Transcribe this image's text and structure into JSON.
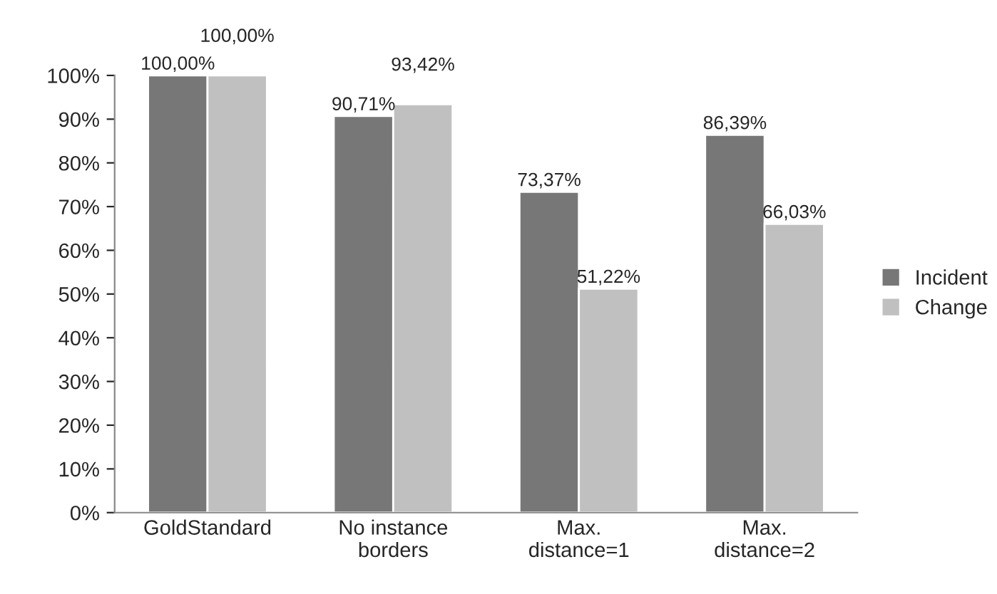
{
  "chart_data": {
    "type": "bar",
    "categories": [
      "GoldStandard",
      "No instance\nborders",
      "Max.\ndistance=1",
      "Max.\ndistance=2"
    ],
    "series": [
      {
        "name": "Incident",
        "color": "#777777",
        "values": [
          100.0,
          90.71,
          73.37,
          86.39
        ],
        "value_labels": [
          "100,00%",
          "90,71%",
          "73,37%",
          "86,39%"
        ]
      },
      {
        "name": "Change",
        "color": "#c0c0c0",
        "values": [
          100.0,
          93.42,
          51.22,
          66.03
        ],
        "value_labels": [
          "100,00%",
          "93,42%",
          "51,22%",
          "66,03%"
        ]
      }
    ],
    "ylim": [
      0,
      100
    ],
    "yticks": [
      {
        "value": 0,
        "label": "0%"
      },
      {
        "value": 10,
        "label": "10%"
      },
      {
        "value": 20,
        "label": "20%"
      },
      {
        "value": 30,
        "label": "30%"
      },
      {
        "value": 40,
        "label": "40%"
      },
      {
        "value": 50,
        "label": "50%"
      },
      {
        "value": 60,
        "label": "60%"
      },
      {
        "value": 70,
        "label": "70%"
      },
      {
        "value": 80,
        "label": "80%"
      },
      {
        "value": 90,
        "label": "90%"
      },
      {
        "value": 100,
        "label": "100%"
      }
    ],
    "grid": false,
    "legend": "right"
  }
}
